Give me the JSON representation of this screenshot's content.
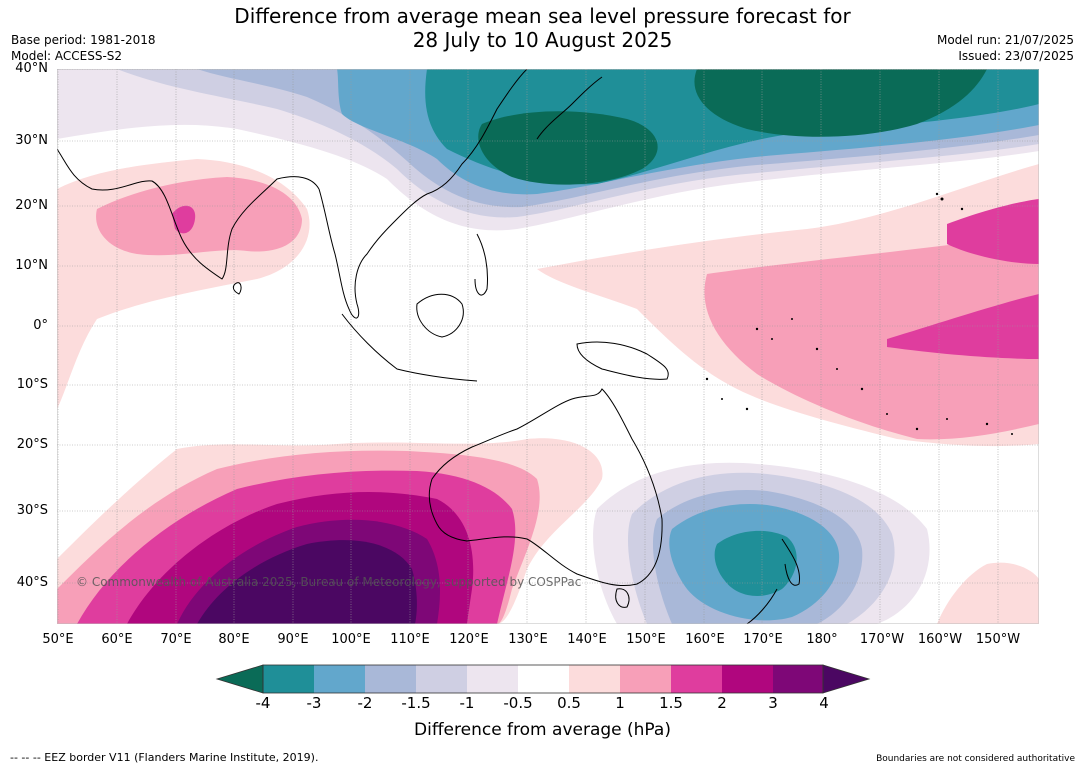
{
  "title": {
    "line1": "Difference from average mean sea level pressure forecast for",
    "line2": "28 July to 10 August 2025"
  },
  "meta": {
    "base_period": "Base period: 1981-2018",
    "model": "Model: ACCESS-S2",
    "model_run": "Model run: 21/07/2025",
    "issued": "Issued: 23/07/2025"
  },
  "map": {
    "copyright": "© Commonwealth of Australia 2025, Bureau of Meteorology, supported by COSPPac",
    "lat_labels": [
      "40°N",
      "30°N",
      "20°N",
      "10°N",
      "0°",
      "10°S",
      "20°S",
      "30°S",
      "40°S"
    ],
    "lon_labels": [
      "50°E",
      "60°E",
      "70°E",
      "80°E",
      "90°E",
      "100°E",
      "110°E",
      "120°E",
      "130°E",
      "140°E",
      "150°E",
      "160°E",
      "170°E",
      "180°",
      "170°W",
      "160°W",
      "150°W"
    ],
    "land_outline_color": "#000000",
    "grid_color": "#9a9a9a"
  },
  "colorbar": {
    "labels": [
      "-4",
      "-3",
      "-2",
      "-1.5",
      "-1",
      "-0.5",
      "0.5",
      "1",
      "1.5",
      "2",
      "3",
      "4"
    ],
    "colors": [
      "#0a6b57",
      "#1f8f98",
      "#62a7cc",
      "#a9b8d8",
      "#cfcfe3",
      "#ede5ef",
      "#ffffff",
      "#fcdcdc",
      "#f79fb8",
      "#df3d9e",
      "#b0067e",
      "#7e0777",
      "#4b0762"
    ],
    "title": "Difference from average (hPa)"
  },
  "footer": {
    "eez": "--  --  -- EEZ border V11 (Flanders Marine Institute, 2019).",
    "boundaries": "Boundaries are not considered authoritative"
  }
}
